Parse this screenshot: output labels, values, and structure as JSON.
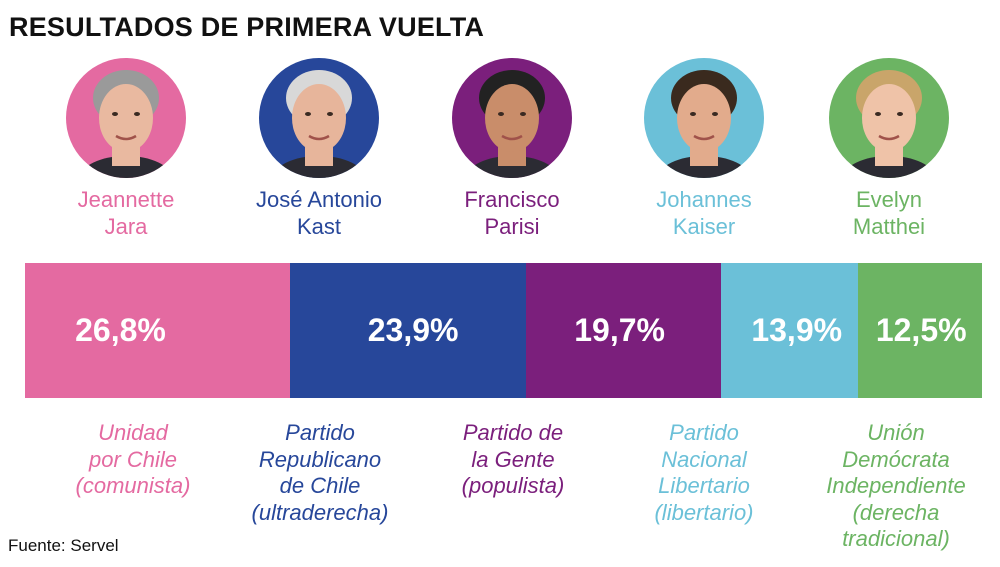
{
  "title": "RESULTADOS DE PRIMERA VUELTA",
  "source": "Fuente: Servel",
  "chart_data": {
    "type": "bar",
    "orientation": "stacked-horizontal",
    "title": "RESULTADOS DE PRIMERA VUELTA",
    "categories": [
      "Jeannette Jara",
      "José Antonio Kast",
      "Francisco Parisi",
      "Johannes Kaiser",
      "Evelyn Matthei"
    ],
    "values": [
      26.8,
      23.9,
      19.7,
      13.9,
      12.5
    ],
    "value_labels": [
      "26,8%",
      "23,9%",
      "19,7%",
      "13,9%",
      "12,5%"
    ],
    "unit": "%",
    "grid": false,
    "legend": "none"
  },
  "candidates": [
    {
      "name_line1": "Jeannette",
      "name_line2": "Jara",
      "party_lines": [
        "Unidad",
        "por Chile",
        "(comunista)"
      ],
      "color": "#e46aa1",
      "photo": "photo-jeannette-jara"
    },
    {
      "name_line1": "José Antonio",
      "name_line2": "Kast",
      "party_lines": [
        "Partido",
        "Republicano",
        "de Chile",
        "(ultraderecha)"
      ],
      "color": "#27479a",
      "photo": "photo-jose-antonio-kast"
    },
    {
      "name_line1": "Francisco",
      "name_line2": "Parisi",
      "party_lines": [
        "Partido de",
        "la Gente",
        "(populista)"
      ],
      "color": "#7b1f7c",
      "photo": "photo-francisco-parisi"
    },
    {
      "name_line1": "Johannes",
      "name_line2": "Kaiser",
      "party_lines": [
        "Partido",
        "Nacional",
        "Libertario",
        "(libertario)"
      ],
      "color": "#6bc0d8",
      "photo": "photo-johannes-kaiser"
    },
    {
      "name_line1": "Evelyn",
      "name_line2": "Matthei",
      "party_lines": [
        "Unión",
        "Demócrata",
        "Independiente",
        "(derecha",
        "tradicional)"
      ],
      "color": "#6cb463",
      "photo": "photo-evelyn-matthei"
    }
  ]
}
